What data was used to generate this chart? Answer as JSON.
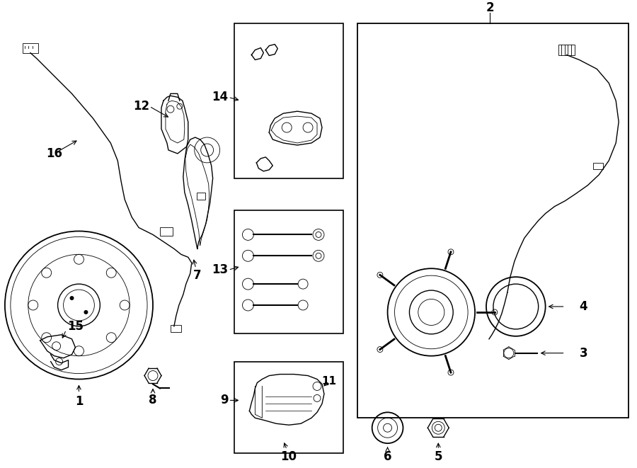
{
  "bg_color": "#ffffff",
  "line_color": "#000000",
  "fig_width": 9.0,
  "fig_height": 6.61,
  "dpi": 100,
  "lw": 1.0,
  "thin": 0.6
}
